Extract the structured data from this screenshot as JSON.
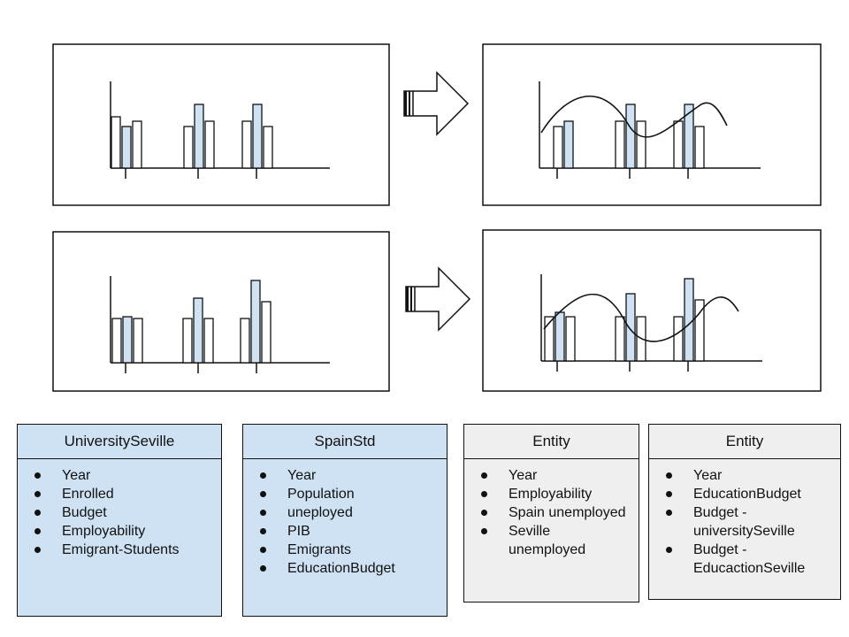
{
  "panels": [
    {
      "id": "top-left",
      "bars": [
        [
          0.58,
          0.47,
          0.53
        ],
        [
          0.47,
          0.72,
          0.53
        ],
        [
          0.53,
          0.72,
          0.47
        ]
      ],
      "curve": false
    },
    {
      "id": "top-right",
      "bars": [
        [
          0.47,
          0.53,
          0.0
        ],
        [
          0.53,
          0.72,
          0.53
        ],
        [
          0.53,
          0.72,
          0.47
        ]
      ],
      "curve": true
    },
    {
      "id": "bottom-left",
      "bars": [
        [
          0.5,
          0.52,
          0.5
        ],
        [
          0.5,
          0.73,
          0.5
        ],
        [
          0.5,
          0.93,
          0.69
        ]
      ],
      "curve": false
    },
    {
      "id": "bottom-right",
      "bars": [
        [
          0.5,
          0.55,
          0.5
        ],
        [
          0.5,
          0.76,
          0.5
        ],
        [
          0.5,
          0.93,
          0.69
        ]
      ],
      "curve": true
    }
  ],
  "colors": {
    "bar_fill": "#cfe2f3",
    "box_blue": "#cfe2f3",
    "box_grey": "#efefef",
    "stroke": "#111111"
  },
  "entities": [
    {
      "title": "UniversitySeville",
      "style": "blue",
      "items": [
        "Year",
        "Enrolled",
        "Budget",
        "Employability",
        "Emigrant-Students"
      ]
    },
    {
      "title": "SpainStd",
      "style": "blue",
      "items": [
        "Year",
        "Population",
        "uneployed",
        "PIB",
        "Emigrants",
        "EducationBudget"
      ]
    },
    {
      "title": "Entity",
      "style": "grey",
      "items": [
        "Year",
        "Employability",
        "Spain unemployed",
        "Seville unemployed"
      ]
    },
    {
      "title": "Entity",
      "style": "grey",
      "items": [
        "Year",
        "EducationBudget",
        "Budget - universitySeville",
        "Budget - EducactionSeville"
      ]
    }
  ]
}
